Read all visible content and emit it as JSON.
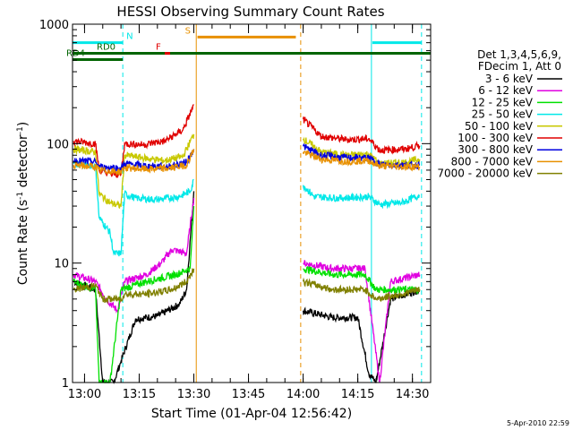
{
  "chart_data": {
    "type": "line",
    "title": "HESSI Observing Summary Count Rates",
    "xlabel": "Start Time (01-Apr-04 12:56:42)",
    "ylabel": "Count Rate (s⁻¹ detector⁻¹)",
    "ylabel_parts": {
      "a": "Count Rate (s",
      "sup1": "-1",
      "b": " detector",
      "sup2": "-1",
      "c": ")"
    },
    "y_scale": "log",
    "ylim": [
      1,
      1000
    ],
    "xlim": [
      "12:56:42",
      "14:35:00"
    ],
    "x_ticks": [
      "13:00",
      "13:15",
      "13:30",
      "13:45",
      "14:00",
      "14:15",
      "14:30"
    ],
    "y_ticks": [
      "1",
      "10",
      "100",
      "1000"
    ],
    "footer_date": "5-Apr-2010 22:59",
    "legend": {
      "placement": "right",
      "header": [
        "Det 1,3,4,5,6,9,",
        "FDecim 1, Att 0"
      ],
      "entries": [
        {
          "label": "3 - 6 keV",
          "color": "#000000"
        },
        {
          "label": "6 - 12 keV",
          "color": "#e000e0"
        },
        {
          "label": "12 - 25 keV",
          "color": "#00e000"
        },
        {
          "label": "25 - 50 keV",
          "color": "#00e8e8"
        },
        {
          "label": "50 - 100 keV",
          "color": "#c8c800"
        },
        {
          "label": "100 - 300 keV",
          "color": "#e00000"
        },
        {
          "label": "300 - 800 keV",
          "color": "#0000e0"
        },
        {
          "label": "800 - 7000 keV",
          "color": "#e89000"
        },
        {
          "label": "7000 - 20000 keV",
          "color": "#808000"
        }
      ]
    },
    "flags": [
      {
        "label": "N",
        "color": "#00e8e8",
        "level": 700,
        "segments": [
          [
            "12:56:42",
            "13:10:30"
          ],
          [
            "14:19:00",
            "14:32:30"
          ]
        ]
      },
      {
        "label": "RD0",
        "color": "#006400",
        "level": 570,
        "segments": [
          [
            "12:56:42",
            "14:35:00"
          ]
        ]
      },
      {
        "label": "RD4",
        "color": "#006400",
        "level": 505,
        "segments": [
          [
            "12:56:42",
            "13:10:30"
          ]
        ]
      },
      {
        "label": "F",
        "color": "#e00000",
        "level": 570,
        "segments": [
          [
            "13:22:00",
            "13:23:30"
          ]
        ]
      },
      {
        "label": "S",
        "color": "#e89000",
        "level": 780,
        "segments": [
          [
            "13:31:00",
            "13:58:00"
          ]
        ]
      }
    ],
    "markers": [
      {
        "time": "13:10:30",
        "color": "#00e8e8",
        "style": "dashed"
      },
      {
        "time": "13:30:40",
        "color": "#e89000",
        "style": "solid"
      },
      {
        "time": "13:59:20",
        "color": "#e89000",
        "style": "dashed"
      },
      {
        "time": "14:18:45",
        "color": "#00e8e8",
        "style": "solid"
      },
      {
        "time": "14:32:30",
        "color": "#00e8e8",
        "style": "dashed"
      }
    ],
    "series": [
      {
        "name": "3 - 6 keV",
        "color": "#000000",
        "points": [
          {
            "x": "12:57",
            "y": 7
          },
          {
            "x": "13:03",
            "y": 6
          },
          {
            "x": "13:05",
            "y": 1
          },
          {
            "x": "13:08",
            "y": 1
          },
          {
            "x": "13:10",
            "y": 1.5
          },
          {
            "x": "13:14",
            "y": 3.4
          },
          {
            "x": "13:20",
            "y": 3.6
          },
          {
            "x": "13:26",
            "y": 4.5
          },
          {
            "x": "13:28",
            "y": 6
          },
          {
            "x": "13:30",
            "y": 40
          },
          {
            "x": "14:00",
            "y": 4
          },
          {
            "x": "14:08",
            "y": 3.5
          },
          {
            "x": "14:15",
            "y": 3.5
          },
          {
            "x": "14:18",
            "y": 1.2
          },
          {
            "x": "14:20",
            "y": 1
          },
          {
            "x": "14:24",
            "y": 5
          },
          {
            "x": "14:32",
            "y": 6
          }
        ]
      },
      {
        "name": "6 - 12 keV",
        "color": "#e000e0",
        "points": [
          {
            "x": "12:57",
            "y": 8
          },
          {
            "x": "13:03",
            "y": 7
          },
          {
            "x": "13:06",
            "y": 5
          },
          {
            "x": "13:09",
            "y": 4
          },
          {
            "x": "13:11",
            "y": 7
          },
          {
            "x": "13:17",
            "y": 8
          },
          {
            "x": "13:21",
            "y": 10
          },
          {
            "x": "13:24",
            "y": 13
          },
          {
            "x": "13:28",
            "y": 12
          },
          {
            "x": "13:30",
            "y": 35
          },
          {
            "x": "14:00",
            "y": 10
          },
          {
            "x": "14:08",
            "y": 9
          },
          {
            "x": "14:17",
            "y": 9
          },
          {
            "x": "14:21",
            "y": 1
          },
          {
            "x": "14:24",
            "y": 7
          },
          {
            "x": "14:32",
            "y": 8
          }
        ]
      },
      {
        "name": "12 - 25 keV",
        "color": "#00e000",
        "points": [
          {
            "x": "12:57",
            "y": 7
          },
          {
            "x": "13:03",
            "y": 6
          },
          {
            "x": "13:04",
            "y": 1
          },
          {
            "x": "13:07",
            "y": 1
          },
          {
            "x": "13:10",
            "y": 6
          },
          {
            "x": "13:17",
            "y": 7
          },
          {
            "x": "13:25",
            "y": 8
          },
          {
            "x": "13:29",
            "y": 9
          },
          {
            "x": "13:30",
            "y": 30
          },
          {
            "x": "14:00",
            "y": 9
          },
          {
            "x": "14:08",
            "y": 8
          },
          {
            "x": "14:17",
            "y": 8
          },
          {
            "x": "14:20",
            "y": 6
          },
          {
            "x": "14:26",
            "y": 6
          },
          {
            "x": "14:32",
            "y": 6
          }
        ]
      },
      {
        "name": "25 - 50 keV",
        "color": "#00e8e8",
        "points": [
          {
            "x": "12:57",
            "y": 68
          },
          {
            "x": "13:03",
            "y": 65
          },
          {
            "x": "13:04",
            "y": 24
          },
          {
            "x": "13:07",
            "y": 18
          },
          {
            "x": "13:08",
            "y": 12
          },
          {
            "x": "13:10",
            "y": 12
          },
          {
            "x": "13:11",
            "y": 38
          },
          {
            "x": "13:14",
            "y": 35
          },
          {
            "x": "13:20",
            "y": 34
          },
          {
            "x": "13:26",
            "y": 36
          },
          {
            "x": "13:29",
            "y": 40
          },
          {
            "x": "13:30",
            "y": 50
          },
          {
            "x": "14:00",
            "y": 45
          },
          {
            "x": "14:03",
            "y": 36
          },
          {
            "x": "14:10",
            "y": 35
          },
          {
            "x": "14:18",
            "y": 36
          },
          {
            "x": "14:21",
            "y": 31
          },
          {
            "x": "14:27",
            "y": 32
          },
          {
            "x": "14:32",
            "y": 37
          }
        ]
      },
      {
        "name": "50 - 100 keV",
        "color": "#c8c800",
        "points": [
          {
            "x": "12:57",
            "y": 90
          },
          {
            "x": "13:03",
            "y": 85
          },
          {
            "x": "13:04",
            "y": 38
          },
          {
            "x": "13:07",
            "y": 32
          },
          {
            "x": "13:10",
            "y": 30
          },
          {
            "x": "13:11",
            "y": 80
          },
          {
            "x": "13:16",
            "y": 76
          },
          {
            "x": "13:22",
            "y": 72
          },
          {
            "x": "13:27",
            "y": 78
          },
          {
            "x": "13:30",
            "y": 120
          },
          {
            "x": "14:00",
            "y": 110
          },
          {
            "x": "14:05",
            "y": 85
          },
          {
            "x": "14:12",
            "y": 80
          },
          {
            "x": "14:18",
            "y": 82
          },
          {
            "x": "14:21",
            "y": 68
          },
          {
            "x": "14:28",
            "y": 70
          },
          {
            "x": "14:32",
            "y": 74
          }
        ]
      },
      {
        "name": "100 - 300 keV",
        "color": "#e00000",
        "points": [
          {
            "x": "12:57",
            "y": 105
          },
          {
            "x": "13:03",
            "y": 100
          },
          {
            "x": "13:04",
            "y": 60
          },
          {
            "x": "13:07",
            "y": 56
          },
          {
            "x": "13:10",
            "y": 55
          },
          {
            "x": "13:11",
            "y": 100
          },
          {
            "x": "13:16",
            "y": 98
          },
          {
            "x": "13:22",
            "y": 105
          },
          {
            "x": "13:27",
            "y": 130
          },
          {
            "x": "13:30",
            "y": 210
          },
          {
            "x": "14:00",
            "y": 160
          },
          {
            "x": "14:05",
            "y": 115
          },
          {
            "x": "14:12",
            "y": 108
          },
          {
            "x": "14:18",
            "y": 110
          },
          {
            "x": "14:21",
            "y": 88
          },
          {
            "x": "14:28",
            "y": 90
          },
          {
            "x": "14:32",
            "y": 96
          }
        ]
      },
      {
        "name": "300 - 800 keV",
        "color": "#0000e0",
        "points": [
          {
            "x": "12:57",
            "y": 72
          },
          {
            "x": "13:03",
            "y": 70
          },
          {
            "x": "13:04",
            "y": 64
          },
          {
            "x": "13:10",
            "y": 62
          },
          {
            "x": "13:11",
            "y": 68
          },
          {
            "x": "13:17",
            "y": 65
          },
          {
            "x": "13:23",
            "y": 64
          },
          {
            "x": "13:28",
            "y": 70
          },
          {
            "x": "13:30",
            "y": 90
          },
          {
            "x": "14:00",
            "y": 95
          },
          {
            "x": "14:05",
            "y": 80
          },
          {
            "x": "14:12",
            "y": 76
          },
          {
            "x": "14:18",
            "y": 76
          },
          {
            "x": "14:21",
            "y": 67
          },
          {
            "x": "14:28",
            "y": 66
          },
          {
            "x": "14:32",
            "y": 66
          }
        ]
      },
      {
        "name": "800 - 7000 keV",
        "color": "#e89000",
        "points": [
          {
            "x": "12:57",
            "y": 66
          },
          {
            "x": "13:03",
            "y": 64
          },
          {
            "x": "13:04",
            "y": 60
          },
          {
            "x": "13:10",
            "y": 58
          },
          {
            "x": "13:11",
            "y": 63
          },
          {
            "x": "13:17",
            "y": 61
          },
          {
            "x": "13:23",
            "y": 62
          },
          {
            "x": "13:28",
            "y": 66
          },
          {
            "x": "13:30",
            "y": 90
          },
          {
            "x": "14:00",
            "y": 85
          },
          {
            "x": "14:05",
            "y": 74
          },
          {
            "x": "14:12",
            "y": 71
          },
          {
            "x": "14:18",
            "y": 72
          },
          {
            "x": "14:21",
            "y": 65
          },
          {
            "x": "14:28",
            "y": 64
          },
          {
            "x": "14:32",
            "y": 64
          }
        ]
      },
      {
        "name": "7000 - 20000 keV",
        "color": "#808000",
        "points": [
          {
            "x": "12:57",
            "y": 6
          },
          {
            "x": "13:03",
            "y": 6.5
          },
          {
            "x": "13:05",
            "y": 5
          },
          {
            "x": "13:10",
            "y": 5
          },
          {
            "x": "13:11",
            "y": 5.5
          },
          {
            "x": "13:17",
            "y": 5.5
          },
          {
            "x": "13:24",
            "y": 6
          },
          {
            "x": "13:28",
            "y": 7
          },
          {
            "x": "13:30",
            "y": 9
          },
          {
            "x": "14:00",
            "y": 7
          },
          {
            "x": "14:08",
            "y": 6
          },
          {
            "x": "14:17",
            "y": 6
          },
          {
            "x": "14:20",
            "y": 5
          },
          {
            "x": "14:27",
            "y": 5.5
          },
          {
            "x": "14:32",
            "y": 6
          }
        ]
      }
    ]
  }
}
